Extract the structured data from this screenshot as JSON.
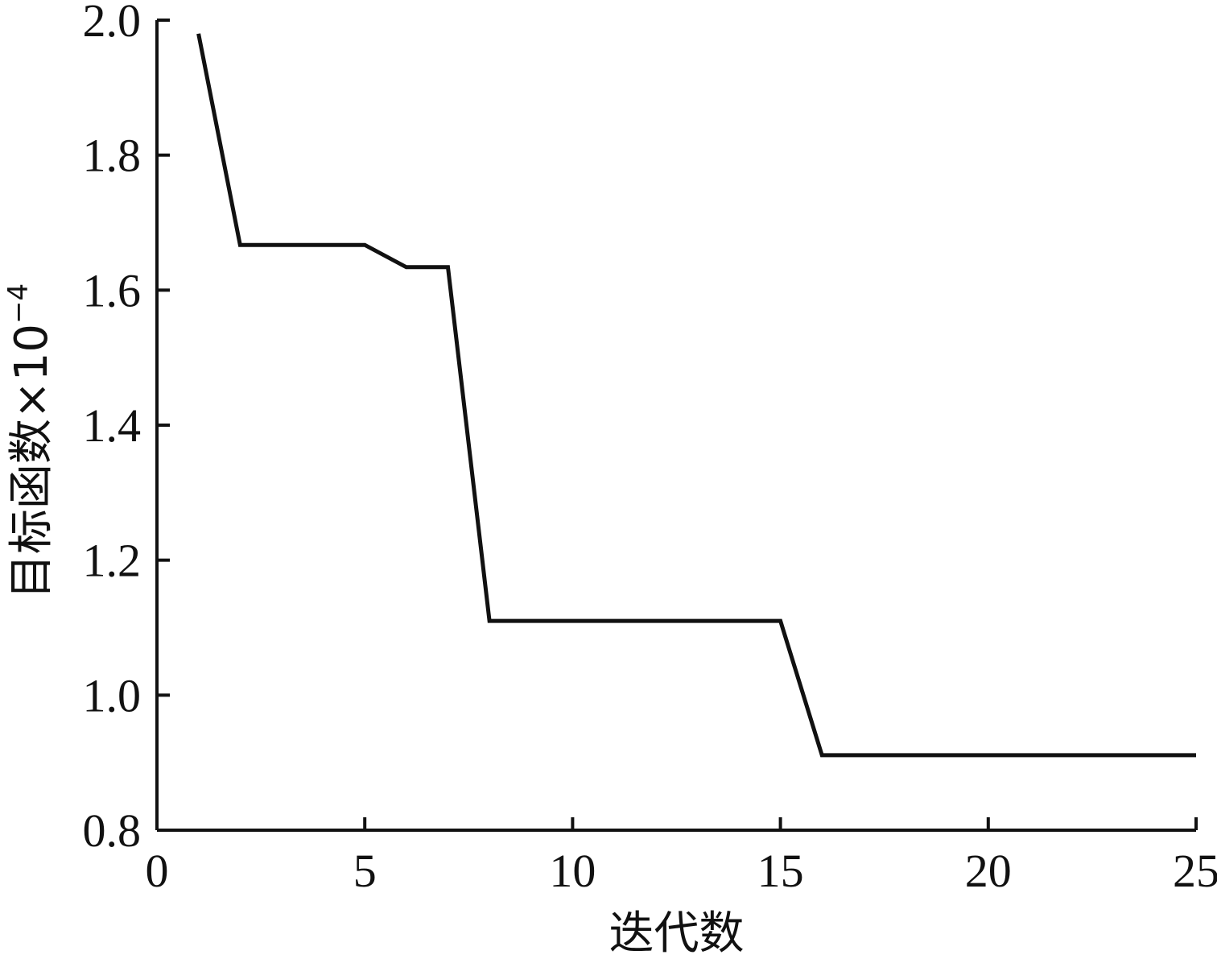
{
  "chart_data": {
    "type": "line",
    "xlabel": "迭代数",
    "ylabel": "目标函数×10",
    "ylabel_exponent": "−4",
    "xlim": [
      0,
      25
    ],
    "ylim": [
      0.8,
      2.0
    ],
    "xticks": [
      0,
      5,
      10,
      15,
      20,
      25
    ],
    "xtick_labels": [
      "0",
      "5",
      "10",
      "15",
      "20",
      "25"
    ],
    "yticks": [
      0.8,
      1.0,
      1.2,
      1.4,
      1.6,
      1.8,
      2.0
    ],
    "ytick_labels": [
      "0.8",
      "1.0",
      "1.2",
      "1.4",
      "1.6",
      "1.8",
      "2.0"
    ],
    "grid": false,
    "series": [
      {
        "color": "#111111",
        "x": [
          1,
          2,
          3,
          4,
          5,
          6,
          7,
          8,
          9,
          10,
          11,
          12,
          13,
          14,
          15,
          16,
          17,
          18,
          19,
          20,
          21,
          22,
          23,
          24,
          25
        ],
        "y": [
          1.98,
          1.667,
          1.667,
          1.667,
          1.667,
          1.634,
          1.634,
          1.11,
          1.11,
          1.11,
          1.11,
          1.11,
          1.11,
          1.11,
          1.11,
          0.911,
          0.911,
          0.911,
          0.911,
          0.911,
          0.911,
          0.911,
          0.911,
          0.911,
          0.911
        ]
      }
    ]
  }
}
